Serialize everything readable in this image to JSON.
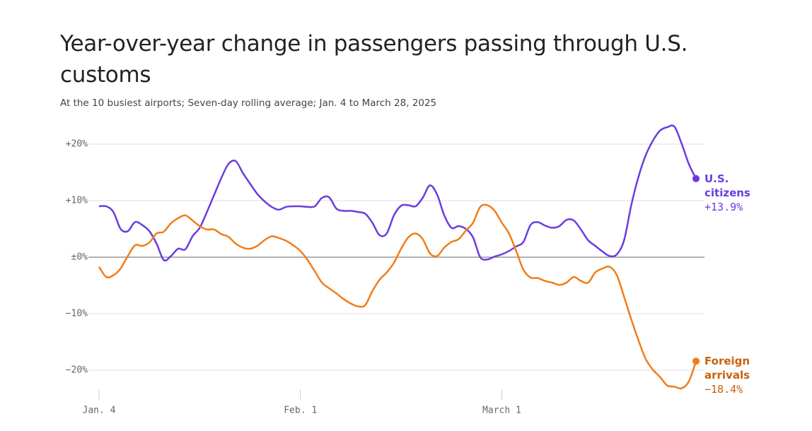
{
  "chart_data": {
    "type": "line",
    "title": "Year-over-year change in passengers passing through U.S. customs",
    "subtitle": "At the 10 busiest airports; Seven-day rolling average; Jan. 4 to March 28, 2025",
    "categories": [
      "Jan. 4",
      null,
      null,
      null,
      null,
      null,
      null,
      null,
      null,
      null,
      null,
      null,
      null,
      null,
      null,
      null,
      null,
      null,
      null,
      null,
      null,
      null,
      null,
      null,
      null,
      null,
      null,
      null,
      "Feb. 1",
      null,
      null,
      null,
      null,
      null,
      null,
      null,
      null,
      null,
      null,
      null,
      null,
      null,
      null,
      null,
      null,
      null,
      null,
      null,
      null,
      null,
      null,
      null,
      null,
      null,
      null,
      null,
      "March 1",
      null,
      null,
      null,
      null,
      null,
      null,
      null,
      null,
      null,
      null,
      null,
      null,
      null,
      null,
      null,
      null,
      null,
      null,
      null,
      null,
      null,
      null,
      null,
      null,
      null,
      null,
      null
    ],
    "ylim": [
      -24,
      24
    ],
    "yticks": [
      {
        "value": 20,
        "label": "+20%"
      },
      {
        "value": 10,
        "label": "+10%"
      },
      {
        "value": 0,
        "label": "±0%"
      },
      {
        "value": -10,
        "label": "−10%"
      },
      {
        "value": -20,
        "label": "−20%"
      }
    ],
    "grid": true,
    "series": [
      {
        "name": "U.S. citizens",
        "color": "#6a3de0",
        "values": [
          9.0,
          9.0,
          8.0,
          5.0,
          4.6,
          6.2,
          5.7,
          4.6,
          2.4,
          -0.5,
          0.2,
          1.5,
          1.4,
          3.7,
          5.2,
          8.0,
          11.0,
          14.0,
          16.5,
          17.0,
          14.9,
          13.0,
          11.2,
          9.9,
          8.9,
          8.4,
          8.9,
          9.0,
          9.0,
          8.9,
          9.0,
          10.5,
          10.6,
          8.6,
          8.2,
          8.2,
          8.0,
          7.7,
          6.1,
          3.9,
          4.2,
          7.4,
          9.1,
          9.2,
          9.0,
          10.5,
          12.7,
          11.1,
          7.4,
          5.2,
          5.5,
          5.0,
          3.5,
          0.0,
          -0.4,
          0.1,
          0.5,
          1.1,
          1.9,
          2.7,
          5.7,
          6.2,
          5.6,
          5.2,
          5.5,
          6.6,
          6.5,
          4.9,
          3.0,
          2.0,
          1.0,
          0.2,
          0.5,
          3.0,
          9.2,
          14.2,
          18.0,
          20.6,
          22.4,
          23.0,
          23.1,
          20.1,
          16.5,
          13.9
        ],
        "value_labels": [
          null,
          null,
          null,
          null,
          null,
          null,
          null,
          null,
          null,
          null,
          null,
          null,
          null,
          null,
          null,
          null,
          null,
          null,
          null,
          null,
          null,
          null,
          null,
          null,
          null,
          null,
          null,
          null,
          null,
          null,
          null,
          null,
          null,
          null,
          null,
          null,
          null,
          null,
          null,
          null,
          null,
          null,
          null,
          null,
          null,
          null,
          null,
          null,
          null,
          null,
          null,
          null,
          null,
          null,
          null,
          null,
          null,
          null,
          null,
          null,
          null,
          null,
          null,
          null,
          null,
          null,
          null,
          null,
          null,
          null,
          null,
          null,
          null,
          null,
          null,
          null,
          null,
          null,
          null,
          null,
          null,
          null,
          null,
          "+13.9%"
        ]
      },
      {
        "name": "Foreign arrivals",
        "color": "#f07d1a",
        "values": [
          -1.7,
          -3.5,
          -3.2,
          -2.0,
          0.2,
          2.1,
          2.0,
          2.6,
          4.2,
          4.5,
          6.0,
          6.9,
          7.4,
          6.5,
          5.5,
          4.9,
          4.9,
          4.1,
          3.6,
          2.4,
          1.7,
          1.5,
          2.0,
          3.0,
          3.7,
          3.4,
          2.9,
          2.1,
          1.1,
          -0.5,
          -2.5,
          -4.5,
          -5.5,
          -6.4,
          -7.4,
          -8.2,
          -8.7,
          -8.5,
          -6.0,
          -4.0,
          -2.7,
          -1.0,
          1.5,
          3.5,
          4.2,
          3.2,
          0.7,
          0.2,
          1.7,
          2.7,
          3.2,
          4.7,
          6.1,
          8.9,
          9.2,
          8.2,
          6.1,
          4.2,
          1.1,
          -2.2,
          -3.6,
          -3.7,
          -4.2,
          -4.5,
          -4.9,
          -4.5,
          -3.5,
          -4.2,
          -4.5,
          -2.7,
          -2.0,
          -1.7,
          -3.2,
          -7.0,
          -11.0,
          -14.7,
          -18.0,
          -19.9,
          -21.2,
          -22.7,
          -22.9,
          -23.2,
          -22.0,
          -18.4
        ],
        "value_labels": [
          null,
          null,
          null,
          null,
          null,
          null,
          null,
          null,
          null,
          null,
          null,
          null,
          null,
          null,
          null,
          null,
          null,
          null,
          null,
          null,
          null,
          null,
          null,
          null,
          null,
          null,
          null,
          null,
          null,
          null,
          null,
          null,
          null,
          null,
          null,
          null,
          null,
          null,
          null,
          null,
          null,
          null,
          null,
          null,
          null,
          null,
          null,
          null,
          null,
          null,
          null,
          null,
          null,
          null,
          null,
          null,
          null,
          null,
          null,
          null,
          null,
          null,
          null,
          null,
          null,
          null,
          null,
          null,
          null,
          null,
          null,
          null,
          null,
          null,
          null,
          null,
          null,
          null,
          null,
          null,
          null,
          null,
          null,
          "−18.4%"
        ]
      }
    ]
  }
}
